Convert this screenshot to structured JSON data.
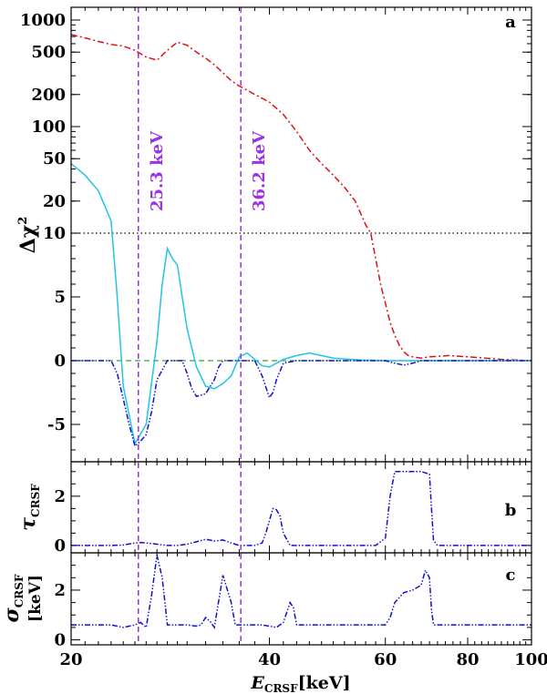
{
  "chart_data": {
    "type": "line",
    "xaxis": {
      "label_main": "E",
      "label_sub": "CRSF",
      "label_unit": "[keV]",
      "scale": "log",
      "range": [
        20,
        100
      ],
      "ticks": [
        20,
        40,
        60,
        80,
        100
      ]
    },
    "vlines": [
      {
        "x": 25.3,
        "label": "25.3 keV",
        "color": "#9b30e8"
      },
      {
        "x": 36.2,
        "label": "36.2 keV",
        "color": "#9b30e8"
      }
    ],
    "panels": [
      {
        "id": "a",
        "letter": "a",
        "ylabel_main": "Δχ",
        "ylabel_sup": "2",
        "yscale": "hybrid: linear below 10, log above 10",
        "yticks": [
          {
            "v": 1000,
            "t": "1000"
          },
          {
            "v": 500,
            "t": "500"
          },
          {
            "v": 200,
            "t": "200"
          },
          {
            "v": 100,
            "t": "100"
          },
          {
            "v": 50,
            "t": "50"
          },
          {
            "v": 20,
            "t": "20"
          },
          {
            "v": 10,
            "t": "10"
          },
          {
            "v": 5,
            "t": "5"
          },
          {
            "v": 0,
            "t": "0"
          },
          {
            "v": -5,
            "t": "-5"
          }
        ],
        "hlines": [
          {
            "y": 10,
            "style": "dotted",
            "color": "#000000"
          },
          {
            "y": 0,
            "style": "dashed",
            "color": "#3aa33a"
          }
        ],
        "series": [
          {
            "name": "red dash-dot",
            "color": "#dd1111",
            "style": "dashdot",
            "x": [
              20,
              21,
              22,
              23,
              24,
              25,
              26,
              27,
              28,
              29,
              30,
              31,
              32,
              33,
              34,
              35,
              36,
              37,
              38,
              40,
              42,
              44,
              46,
              48,
              50,
              52,
              54,
              56,
              57,
              58,
              59,
              60,
              61,
              62,
              63,
              64,
              65,
              66,
              68,
              70,
              75,
              80,
              85,
              90,
              100
            ],
            "y": [
              730,
              680,
              630,
              590,
              570,
              520,
              450,
              420,
              520,
              620,
              580,
              500,
              440,
              380,
              320,
              270,
              240,
              220,
              200,
              170,
              130,
              90,
              60,
              45,
              35,
              27,
              20,
              12,
              10,
              8,
              6,
              4.5,
              3,
              2,
              1.2,
              0.7,
              0.4,
              0.3,
              0.2,
              0.3,
              0.4,
              0.3,
              0.2,
              0.1,
              0
            ]
          },
          {
            "name": "cyan solid",
            "color": "#22c4e8",
            "style": "solid",
            "x": [
              20,
              21,
              22,
              23,
              23.5,
              24,
              25,
              26,
              27,
              27.5,
              28,
              28.5,
              29,
              30,
              31,
              32,
              33,
              34,
              35,
              36,
              37,
              38,
              39,
              40,
              41,
              42,
              44,
              46,
              48,
              50,
              55,
              60,
              65,
              70,
              80,
              100
            ],
            "y": [
              45,
              35,
              25,
              13,
              5,
              -2,
              -6.5,
              -5,
              1.5,
              6,
              8.8,
              8,
              7.5,
              2.5,
              -0.5,
              -2,
              -2.2,
              -1.8,
              -1.2,
              0.3,
              0.6,
              0.1,
              -0.4,
              -0.5,
              -0.2,
              0.1,
              0.4,
              0.6,
              0.4,
              0.2,
              0.05,
              0,
              0,
              0,
              0,
              0
            ]
          },
          {
            "name": "blue dash-dot-dot",
            "color": "#1111cc",
            "style": "dashdotdot",
            "x": [
              20,
              22,
              23,
              23.5,
              24,
              24.5,
              25,
              25.5,
              26,
              26.5,
              27,
              28,
              29,
              29.5,
              30,
              30.5,
              31,
              32,
              33,
              33.5,
              34,
              35,
              36,
              37,
              38,
              39,
              40,
              40.5,
              41,
              42,
              44,
              50,
              55,
              60,
              62,
              64,
              66,
              68,
              70,
              80,
              100
            ],
            "y": [
              0,
              0,
              0,
              -1,
              -3,
              -5,
              -6.7,
              -6.3,
              -5.8,
              -4,
              -1.5,
              0,
              0,
              0,
              -1,
              -2.2,
              -2.8,
              -2.6,
              -1.5,
              -0.5,
              0,
              0,
              0,
              0,
              0,
              -1.2,
              -2.9,
              -2.5,
              -1.5,
              -0.2,
              0,
              0,
              0,
              0,
              -0.2,
              -0.35,
              -0.2,
              0,
              0,
              0,
              0
            ]
          }
        ]
      },
      {
        "id": "b",
        "letter": "b",
        "ylabel_main": "τ",
        "ylabel_sub": "CRSF",
        "yrange": [
          -0.3,
          3.4
        ],
        "yticks": [
          {
            "v": 0,
            "t": "0"
          },
          {
            "v": 2,
            "t": "2"
          }
        ],
        "series": [
          {
            "name": "tau",
            "color": "#1111cc",
            "style": "dashdotdot",
            "x": [
              20,
              23,
              24,
              25,
              25.5,
              26,
              27,
              28,
              29,
              30,
              31,
              31.5,
              32,
              32.5,
              33,
              33.5,
              34,
              35,
              36,
              37,
              38,
              39,
              39.5,
              40,
              40.5,
              41,
              41.5,
              42,
              43,
              50,
              58,
              60,
              61,
              62,
              64,
              66,
              68,
              70,
              70.5,
              71,
              72,
              80,
              100
            ],
            "y": [
              0,
              0,
              0.02,
              0.1,
              0.12,
              0.1,
              0.05,
              0,
              0,
              0.05,
              0.15,
              0.2,
              0.25,
              0.22,
              0.18,
              0.2,
              0.22,
              0.1,
              0,
              0,
              0,
              0.1,
              0.5,
              1.0,
              1.5,
              1.45,
              1.2,
              0.5,
              0,
              0,
              0,
              0.3,
              2.0,
              3.0,
              3.0,
              3.0,
              3.0,
              2.9,
              1.5,
              0.2,
              0,
              0,
              0
            ]
          }
        ]
      },
      {
        "id": "c",
        "letter": "c",
        "ylabel_main": "σ",
        "ylabel_sub": "CRSF",
        "ylabel_unit": "[keV]",
        "yrange": [
          -0.2,
          3.5
        ],
        "yticks": [
          {
            "v": 0,
            "t": "0"
          },
          {
            "v": 2,
            "t": "2"
          }
        ],
        "series": [
          {
            "name": "sigma",
            "color": "#1111cc",
            "style": "dashdotdot",
            "x": [
              20,
              22,
              23,
              24,
              25,
              25.5,
              26,
              26.5,
              27,
              27.5,
              28,
              29,
              30,
              31,
              31.5,
              32,
              32.5,
              33,
              34,
              35,
              35.5,
              36,
              37,
              38,
              39,
              40,
              41,
              42,
              43,
              43.5,
              44,
              45,
              50,
              55,
              58,
              60,
              61,
              62,
              64,
              66,
              68,
              69,
              70,
              70.5,
              71,
              72,
              80,
              100
            ],
            "y": [
              0.6,
              0.6,
              0.6,
              0.5,
              0.6,
              0.7,
              0.5,
              1.8,
              3.4,
              2.5,
              0.6,
              0.6,
              0.6,
              0.55,
              0.6,
              0.9,
              0.75,
              0.5,
              2.6,
              1.5,
              0.6,
              0.6,
              0.6,
              0.6,
              0.6,
              0.55,
              0.5,
              0.7,
              1.5,
              1.3,
              0.6,
              0.6,
              0.6,
              0.6,
              0.6,
              0.6,
              0.9,
              1.5,
              1.9,
              2.0,
              2.2,
              2.8,
              2.5,
              1.2,
              0.6,
              0.6,
              0.6,
              0.6
            ]
          }
        ]
      }
    ]
  }
}
